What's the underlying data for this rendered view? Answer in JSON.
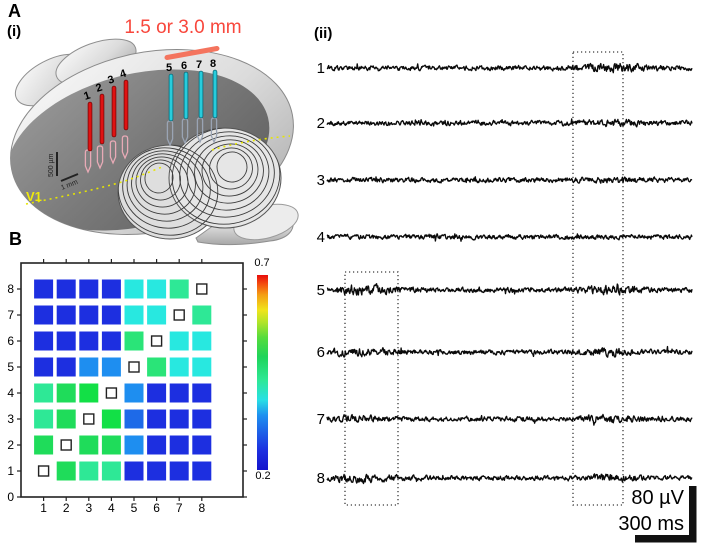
{
  "labels": {
    "panel_a": "A",
    "panel_a_i": "(i)",
    "panel_a_ii": "(ii)",
    "panel_b": "B"
  },
  "panelA": {
    "distance_label": "1.5 or 3.0 mm",
    "distance_label_color": "#f8473c",
    "v1_label": "V1",
    "v1_color": "#f0e90a",
    "scale_depth": "500 µm",
    "scale_width": "1 mm",
    "electrode_groups": [
      {
        "name": "medial-array",
        "color": "#e01212",
        "outline": "#7a0808",
        "pin_color": "#e8aab6",
        "labels": [
          "1",
          "2",
          "3",
          "4"
        ]
      },
      {
        "name": "lateral-array",
        "color": "#28ccdc",
        "outline": "#0a6a78",
        "pin_color": "#9aa4b4",
        "labels": [
          "5",
          "6",
          "7",
          "8"
        ]
      }
    ]
  },
  "chart_data": [
    {
      "type": "line",
      "id": "raw-voltage-traces",
      "description": "Raw extracellular voltage traces from electrodes 1-8; dashed boxes mark oscillatory epochs",
      "traces": [
        {
          "label": "1",
          "bursts": [
            [
              0.79,
              0.07,
              1.25
            ]
          ]
        },
        {
          "label": "2",
          "bursts": [
            [
              0.79,
              0.06,
              0.55
            ]
          ]
        },
        {
          "label": "3",
          "bursts": [
            [
              0.8,
              0.05,
              0.45
            ]
          ]
        },
        {
          "label": "4",
          "bursts": []
        },
        {
          "label": "5",
          "bursts": [
            [
              0.09,
              0.07,
              1.3
            ],
            [
              0.78,
              0.06,
              1.1
            ]
          ]
        },
        {
          "label": "6",
          "bursts": [
            [
              0.09,
              0.06,
              0.9
            ],
            [
              0.78,
              0.05,
              1.0
            ]
          ]
        },
        {
          "label": "7",
          "bursts": [
            [
              0.08,
              0.06,
              0.7
            ],
            [
              0.77,
              0.06,
              0.9
            ]
          ]
        },
        {
          "label": "8",
          "bursts": [
            [
              0.08,
              0.07,
              1.0
            ],
            [
              0.77,
              0.05,
              0.8
            ]
          ]
        }
      ],
      "scale_bar": {
        "voltage": "80 µV",
        "time": "300 ms"
      }
    },
    {
      "type": "heatmap",
      "id": "pairwise-electrode-matrix",
      "x_tick_labels": [
        "1",
        "2",
        "3",
        "4",
        "5",
        "6",
        "7",
        "8"
      ],
      "y_tick_labels": [
        "0",
        "1",
        "2",
        "3",
        "4",
        "5",
        "6",
        "7",
        "8"
      ],
      "colorbar": {
        "min": 0.2,
        "max": 0.7,
        "min_label": "0.2",
        "max_label": "0.7"
      },
      "diagonal_marker": "open-square",
      "matrix_rows_bottom_to_top": [
        [
          null,
          0.52,
          0.48,
          0.48,
          0.22,
          0.22,
          0.22,
          0.22
        ],
        [
          0.52,
          null,
          0.52,
          0.52,
          0.31,
          0.22,
          0.22,
          0.22
        ],
        [
          0.48,
          0.52,
          null,
          0.56,
          0.28,
          0.22,
          0.22,
          0.22
        ],
        [
          0.48,
          0.52,
          0.56,
          null,
          0.31,
          0.22,
          0.22,
          0.22
        ],
        [
          0.22,
          0.22,
          0.31,
          0.31,
          null,
          0.5,
          0.42,
          0.42
        ],
        [
          0.22,
          0.22,
          0.22,
          0.22,
          0.5,
          null,
          0.42,
          0.42
        ],
        [
          0.22,
          0.22,
          0.22,
          0.22,
          0.42,
          0.42,
          null,
          0.48
        ],
        [
          0.22,
          0.22,
          0.22,
          0.22,
          0.42,
          0.42,
          0.48,
          null
        ]
      ],
      "value_palette": {
        "0.22": "#1d2fe0",
        "0.28": "#1e6ae8",
        "0.31": "#1e8ef0",
        "0.42": "#28e8e0",
        "0.48": "#2ee896",
        "0.5": "#2ae478",
        "0.52": "#1fdc5a",
        "0.56": "#12e046"
      }
    }
  ]
}
